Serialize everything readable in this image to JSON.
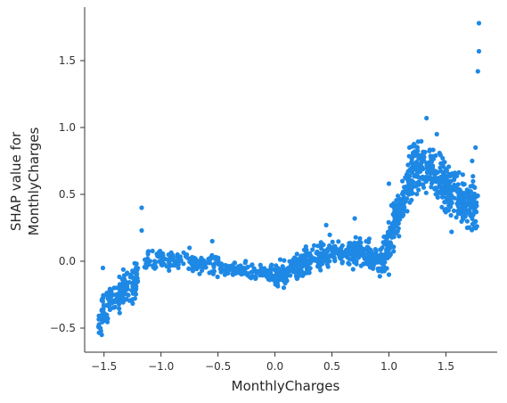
{
  "chart_data": {
    "type": "scatter",
    "title": "",
    "xlabel": "MonthlyCharges",
    "ylabel_lines": [
      "SHAP value for",
      "MonthlyCharges"
    ],
    "xlim": [
      -1.67,
      1.95
    ],
    "ylim": [
      -0.68,
      1.9
    ],
    "x_ticks": [
      -1.5,
      -1.0,
      -0.5,
      0.0,
      0.5,
      1.0,
      1.5
    ],
    "x_tick_labels": [
      "−1.5",
      "−1.0",
      "−0.5",
      "0.0",
      "0.5",
      "1.0",
      "1.5"
    ],
    "y_ticks": [
      -0.5,
      0.0,
      0.5,
      1.0,
      1.5
    ],
    "y_tick_labels": [
      "−0.5",
      "0.0",
      "0.5",
      "1.0",
      "1.5"
    ],
    "grid": false,
    "point_color": "#1E88E5",
    "trend_knots": [
      [
        -1.55,
        -0.45
      ],
      [
        -1.45,
        -0.28
      ],
      [
        -1.35,
        -0.22
      ],
      [
        -1.25,
        -0.18
      ],
      [
        -1.18,
        -0.05
      ],
      [
        -1.1,
        0.02
      ],
      [
        -0.9,
        0.0
      ],
      [
        -0.65,
        -0.02
      ],
      [
        -0.4,
        -0.06
      ],
      [
        -0.15,
        -0.08
      ],
      [
        0.05,
        -0.12
      ],
      [
        0.2,
        -0.04
      ],
      [
        0.4,
        0.05
      ],
      [
        0.6,
        0.08
      ],
      [
        0.8,
        0.06
      ],
      [
        0.95,
        0.0
      ],
      [
        1.02,
        0.2
      ],
      [
        1.12,
        0.45
      ],
      [
        1.22,
        0.72
      ],
      [
        1.35,
        0.72
      ],
      [
        1.45,
        0.62
      ],
      [
        1.6,
        0.48
      ],
      [
        1.75,
        0.42
      ]
    ],
    "points_sample": [
      [
        -1.52,
        -0.55
      ],
      [
        -1.5,
        -0.42
      ],
      [
        -1.48,
        -0.33
      ],
      [
        -1.51,
        -0.05
      ],
      [
        -1.45,
        -0.3
      ],
      [
        -1.38,
        -0.25
      ],
      [
        -1.3,
        -0.2
      ],
      [
        -1.22,
        -0.05
      ],
      [
        -1.17,
        0.4
      ],
      [
        -1.17,
        0.23
      ],
      [
        -1.0,
        0.05
      ],
      [
        -0.75,
        0.1
      ],
      [
        -0.55,
        0.15
      ],
      [
        -0.3,
        -0.05
      ],
      [
        0.0,
        -0.15
      ],
      [
        0.2,
        0.0
      ],
      [
        0.45,
        0.27
      ],
      [
        0.7,
        0.32
      ],
      [
        0.95,
        -0.05
      ],
      [
        1.0,
        -0.1
      ],
      [
        1.0,
        0.58
      ],
      [
        1.18,
        0.85
      ],
      [
        1.33,
        1.07
      ],
      [
        1.42,
        0.95
      ],
      [
        1.55,
        0.22
      ],
      [
        1.73,
        0.75
      ],
      [
        1.76,
        0.85
      ],
      [
        1.78,
        1.42
      ],
      [
        1.79,
        1.57
      ],
      [
        1.79,
        1.78
      ]
    ]
  }
}
